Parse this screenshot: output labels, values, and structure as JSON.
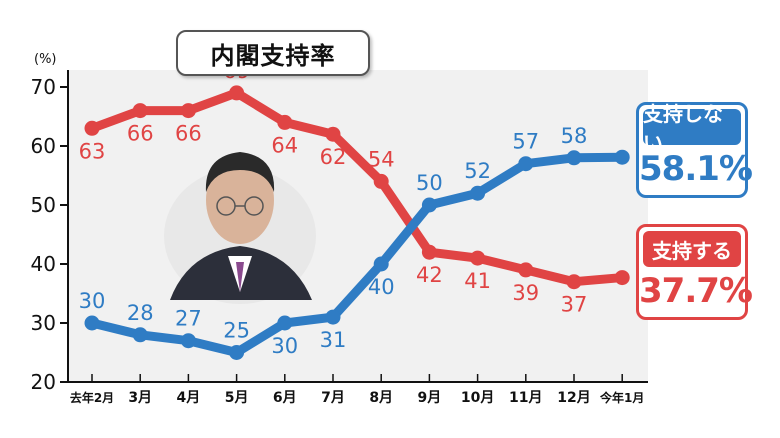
{
  "title": "内閣支持率",
  "unit": "(%)",
  "boxes": {
    "disapprove": {
      "label": "支持しない",
      "value": "58.1%"
    },
    "approve": {
      "label": "支持する",
      "value": "37.7%"
    }
  },
  "colors": {
    "approve": "#e04444",
    "disapprove": "#2f7cc4"
  },
  "chart_data": {
    "type": "line",
    "categories": [
      "去年2月",
      "3月",
      "4月",
      "5月",
      "6月",
      "7月",
      "8月",
      "9月",
      "10月",
      "11月",
      "12月",
      "今年1月"
    ],
    "series": [
      {
        "name": "支持する",
        "values": [
          63,
          66,
          66,
          69,
          64,
          62,
          54,
          42,
          41,
          39,
          37,
          37.7
        ],
        "labels": [
          "63",
          "66",
          "66",
          "69",
          "64",
          "62",
          "54",
          "42",
          "41",
          "39",
          "37",
          ""
        ]
      },
      {
        "name": "支持しない",
        "values": [
          30,
          28,
          27,
          25,
          30,
          31,
          40,
          50,
          52,
          57,
          58,
          58.1
        ],
        "labels": [
          "30",
          "28",
          "27",
          "25",
          "30",
          "31",
          "40",
          "50",
          "52",
          "57",
          "58",
          ""
        ]
      }
    ],
    "yticks": [
      20,
      30,
      40,
      50,
      60,
      70
    ],
    "ylim": [
      20,
      70
    ],
    "ylabel": "(%)",
    "grid": false
  }
}
